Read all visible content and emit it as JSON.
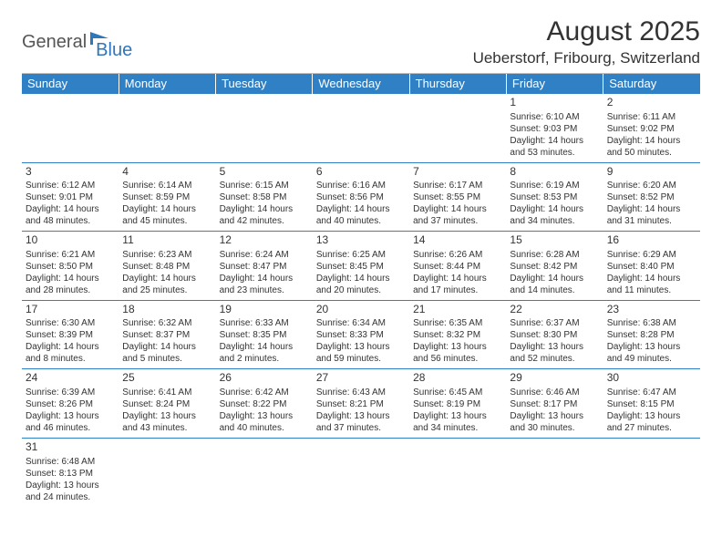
{
  "logo": {
    "text1": "General",
    "text2": "Blue"
  },
  "title": "August 2025",
  "location": "Ueberstorf, Fribourg, Switzerland",
  "colors": {
    "header_bg": "#3080c5",
    "header_fg": "#ffffff",
    "row_border": "#3080c5",
    "page_bg": "#ffffff",
    "text": "#333333"
  },
  "weekdays": [
    "Sunday",
    "Monday",
    "Tuesday",
    "Wednesday",
    "Thursday",
    "Friday",
    "Saturday"
  ],
  "weeks": [
    [
      null,
      null,
      null,
      null,
      null,
      {
        "n": "1",
        "sr": "6:10 AM",
        "ss": "9:03 PM",
        "dl": "14 hours and 53 minutes."
      },
      {
        "n": "2",
        "sr": "6:11 AM",
        "ss": "9:02 PM",
        "dl": "14 hours and 50 minutes."
      }
    ],
    [
      {
        "n": "3",
        "sr": "6:12 AM",
        "ss": "9:01 PM",
        "dl": "14 hours and 48 minutes."
      },
      {
        "n": "4",
        "sr": "6:14 AM",
        "ss": "8:59 PM",
        "dl": "14 hours and 45 minutes."
      },
      {
        "n": "5",
        "sr": "6:15 AM",
        "ss": "8:58 PM",
        "dl": "14 hours and 42 minutes."
      },
      {
        "n": "6",
        "sr": "6:16 AM",
        "ss": "8:56 PM",
        "dl": "14 hours and 40 minutes."
      },
      {
        "n": "7",
        "sr": "6:17 AM",
        "ss": "8:55 PM",
        "dl": "14 hours and 37 minutes."
      },
      {
        "n": "8",
        "sr": "6:19 AM",
        "ss": "8:53 PM",
        "dl": "14 hours and 34 minutes."
      },
      {
        "n": "9",
        "sr": "6:20 AM",
        "ss": "8:52 PM",
        "dl": "14 hours and 31 minutes."
      }
    ],
    [
      {
        "n": "10",
        "sr": "6:21 AM",
        "ss": "8:50 PM",
        "dl": "14 hours and 28 minutes."
      },
      {
        "n": "11",
        "sr": "6:23 AM",
        "ss": "8:48 PM",
        "dl": "14 hours and 25 minutes."
      },
      {
        "n": "12",
        "sr": "6:24 AM",
        "ss": "8:47 PM",
        "dl": "14 hours and 23 minutes."
      },
      {
        "n": "13",
        "sr": "6:25 AM",
        "ss": "8:45 PM",
        "dl": "14 hours and 20 minutes."
      },
      {
        "n": "14",
        "sr": "6:26 AM",
        "ss": "8:44 PM",
        "dl": "14 hours and 17 minutes."
      },
      {
        "n": "15",
        "sr": "6:28 AM",
        "ss": "8:42 PM",
        "dl": "14 hours and 14 minutes."
      },
      {
        "n": "16",
        "sr": "6:29 AM",
        "ss": "8:40 PM",
        "dl": "14 hours and 11 minutes."
      }
    ],
    [
      {
        "n": "17",
        "sr": "6:30 AM",
        "ss": "8:39 PM",
        "dl": "14 hours and 8 minutes."
      },
      {
        "n": "18",
        "sr": "6:32 AM",
        "ss": "8:37 PM",
        "dl": "14 hours and 5 minutes."
      },
      {
        "n": "19",
        "sr": "6:33 AM",
        "ss": "8:35 PM",
        "dl": "14 hours and 2 minutes."
      },
      {
        "n": "20",
        "sr": "6:34 AM",
        "ss": "8:33 PM",
        "dl": "13 hours and 59 minutes."
      },
      {
        "n": "21",
        "sr": "6:35 AM",
        "ss": "8:32 PM",
        "dl": "13 hours and 56 minutes."
      },
      {
        "n": "22",
        "sr": "6:37 AM",
        "ss": "8:30 PM",
        "dl": "13 hours and 52 minutes."
      },
      {
        "n": "23",
        "sr": "6:38 AM",
        "ss": "8:28 PM",
        "dl": "13 hours and 49 minutes."
      }
    ],
    [
      {
        "n": "24",
        "sr": "6:39 AM",
        "ss": "8:26 PM",
        "dl": "13 hours and 46 minutes."
      },
      {
        "n": "25",
        "sr": "6:41 AM",
        "ss": "8:24 PM",
        "dl": "13 hours and 43 minutes."
      },
      {
        "n": "26",
        "sr": "6:42 AM",
        "ss": "8:22 PM",
        "dl": "13 hours and 40 minutes."
      },
      {
        "n": "27",
        "sr": "6:43 AM",
        "ss": "8:21 PM",
        "dl": "13 hours and 37 minutes."
      },
      {
        "n": "28",
        "sr": "6:45 AM",
        "ss": "8:19 PM",
        "dl": "13 hours and 34 minutes."
      },
      {
        "n": "29",
        "sr": "6:46 AM",
        "ss": "8:17 PM",
        "dl": "13 hours and 30 minutes."
      },
      {
        "n": "30",
        "sr": "6:47 AM",
        "ss": "8:15 PM",
        "dl": "13 hours and 27 minutes."
      }
    ],
    [
      {
        "n": "31",
        "sr": "6:48 AM",
        "ss": "8:13 PM",
        "dl": "13 hours and 24 minutes."
      },
      null,
      null,
      null,
      null,
      null,
      null
    ]
  ],
  "labels": {
    "sunrise": "Sunrise: ",
    "sunset": "Sunset: ",
    "daylight": "Daylight: "
  }
}
